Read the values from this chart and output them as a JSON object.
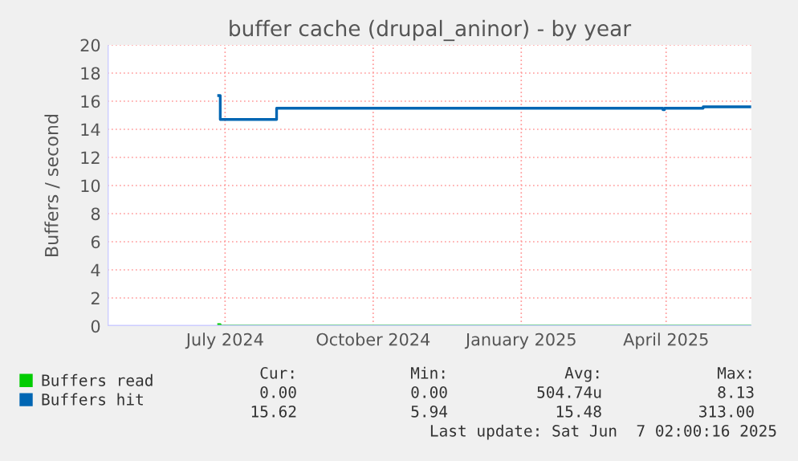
{
  "chart_data": {
    "type": "step",
    "title": "buffer cache (drupal_aninor) - by year",
    "ylabel": "Buffers / second",
    "x": [
      "2024-07-11",
      "2024-07-12",
      "2024-08-14",
      "2024-08-16",
      "2025-04-13",
      "2025-04-14",
      "2025-05-08",
      "2025-06-06"
    ],
    "series": [
      {
        "name": "Buffers read",
        "color": "#00cc00",
        "values": [
          0.1,
          0,
          0,
          0,
          0,
          0,
          0,
          0
        ]
      },
      {
        "name": "Buffers hit",
        "color": "#0066b3",
        "values": [
          16.4,
          14.7,
          14.7,
          15.5,
          15.4,
          15.5,
          15.6,
          15.6
        ]
      }
    ],
    "xlim": [
      "2024-05-03",
      "2025-06-07"
    ],
    "xticks": [
      {
        "value": "2024-07-15",
        "label": "July 2024"
      },
      {
        "value": "2024-10-15",
        "label": "October 2024"
      },
      {
        "value": "2025-01-15",
        "label": "January 2025"
      },
      {
        "value": "2025-04-15",
        "label": "April 2025"
      }
    ],
    "ylim": [
      0,
      20
    ],
    "yticks": [
      0,
      2,
      4,
      6,
      8,
      10,
      12,
      14,
      16,
      18,
      20
    ],
    "grid": true,
    "legend": "bottom",
    "annotations": [
      "Cur:",
      "Min:",
      "Avg:",
      "Max:",
      "0.00",
      "0.00",
      "504.74u",
      "8.13",
      "15.62",
      "5.94",
      "15.48",
      "313.00",
      "Last update: Sat Jun  7 02:00:16 2025"
    ]
  }
}
